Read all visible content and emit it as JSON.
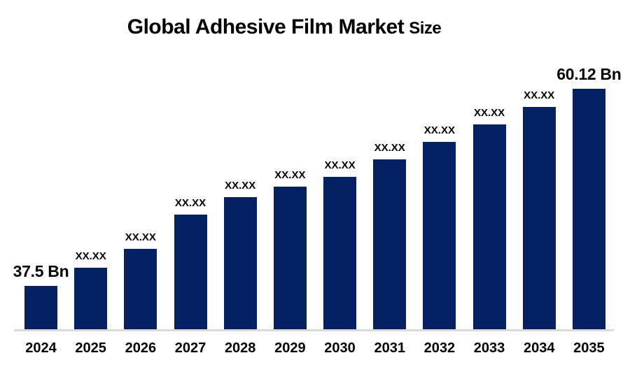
{
  "title": {
    "main": "Global Adhesive Film Market",
    "suffix": "Size"
  },
  "colors": {
    "bar": "#062163",
    "axis_line": "#d9d9d9",
    "text": "#000000",
    "background": "#ffffff"
  },
  "chart_data": {
    "type": "bar",
    "title": "Global Adhesive Film Market Size",
    "categories": [
      "2024",
      "2025",
      "2026",
      "2027",
      "2028",
      "2029",
      "2030",
      "2031",
      "2032",
      "2033",
      "2034",
      "2035"
    ],
    "values": [
      37.5,
      39.6,
      41.7,
      45.7,
      47.7,
      48.9,
      50.0,
      52.0,
      54.0,
      56.0,
      58.0,
      60.12
    ],
    "bar_labels": [
      "37.5 Bn",
      "XX.XX",
      "XX.XX",
      "XX.XX",
      "XX.XX",
      "XX.XX",
      "XX.XX",
      "XX.XX",
      "XX.XX",
      "XX.XX",
      "XX.XX",
      "60.12 Bn"
    ],
    "unit": "Bn",
    "ylim": [
      32.5,
      63.1
    ],
    "grid": false,
    "legend": false
  }
}
